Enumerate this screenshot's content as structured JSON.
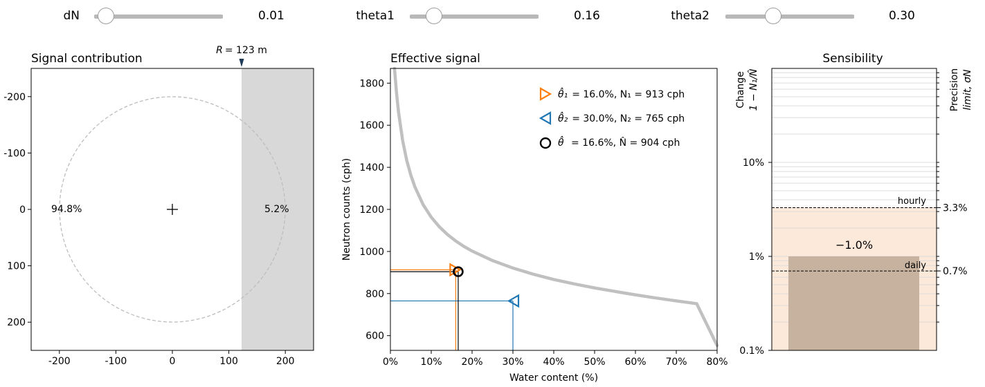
{
  "controls": [
    {
      "label": "dN",
      "value": "0.01",
      "fraction": 0.09
    },
    {
      "label": "theta1",
      "value": "0.16",
      "fraction": 0.19
    },
    {
      "label": "theta2",
      "value": "0.30",
      "fraction": 0.37
    }
  ],
  "panels": {
    "signal": {
      "title": "Signal contribution",
      "radius_label_prefix": "R",
      "radius_label_value": "= 123 m",
      "inside_pct": "94.8%",
      "outside_pct": "5.2%",
      "colors": {
        "shade": "#d8d8d8",
        "circle": "#bdbdbd",
        "marker": "#1f3b57"
      }
    },
    "effective": {
      "title": "Effective signal",
      "legend": [
        {
          "symbol": "θ̂₁",
          "text": "= 16.0%,  N₁ =  913 cph",
          "color": "#ff7f0e"
        },
        {
          "symbol": "θ̂₂",
          "text": "= 30.0%,  N₂ =  765 cph",
          "color": "#1f77b4"
        },
        {
          "symbol": "θ̂",
          "text": " = 16.6%,  N̂  =  904 cph",
          "color": "#000000"
        }
      ]
    },
    "sensibility": {
      "title": "Sensibility",
      "left_label_1": "Change",
      "left_label_2": "1 − N₁/N̂",
      "right_label_1": "Precision",
      "right_label_2": "limit, σN",
      "hourly_label": "hourly",
      "daily_label": "daily",
      "change_label": "−1.0%",
      "colors": {
        "band": "#fde9d9",
        "bar": "#c6b29e"
      }
    }
  },
  "chart_data": [
    {
      "type": "scatter",
      "title": "Signal contribution",
      "xlabel": "",
      "ylabel": "",
      "xlim": [
        -250,
        250
      ],
      "ylim": [
        250,
        -250
      ],
      "xticks": [
        "-200",
        "-100",
        "0",
        "100",
        "200"
      ],
      "yticks": [
        "-200",
        "-100",
        "0",
        "100",
        "200"
      ],
      "circle_radius_m": 200,
      "cut_radius_m": 123,
      "inside_percent": 94.8,
      "outside_percent": 5.2,
      "center": [
        0,
        0
      ]
    },
    {
      "type": "line",
      "title": "Effective signal",
      "xlabel": "Water content (%)",
      "ylabel": "Neutron counts (cph)",
      "xlim": [
        0,
        80
      ],
      "ylim": [
        530,
        1870
      ],
      "xticks": [
        "0%",
        "10%",
        "20%",
        "30%",
        "40%",
        "50%",
        "60%",
        "70%",
        "80%"
      ],
      "yticks": [
        "600",
        "800",
        "1000",
        "1200",
        "1400",
        "1600",
        "1800"
      ],
      "curve_x": [
        1,
        1.5,
        2,
        3,
        4,
        5,
        6,
        8,
        10,
        12,
        14,
        16,
        18,
        20,
        25,
        30,
        35,
        40,
        45,
        50,
        55,
        60,
        65,
        70,
        75,
        80
      ],
      "curve_y": [
        1870,
        1752,
        1661,
        1527,
        1433,
        1363,
        1307,
        1223,
        1163,
        1117,
        1080,
        1050,
        1024,
        1002,
        957,
        921,
        892,
        867,
        846,
        827,
        810,
        794,
        779,
        765,
        752,
        540
      ],
      "points": [
        {
          "name": "theta1",
          "x": 16.0,
          "y": 913,
          "marker": "triangle-right",
          "color": "#ff7f0e"
        },
        {
          "name": "theta2",
          "x": 30.0,
          "y": 765,
          "marker": "triangle-left",
          "color": "#1f77b4"
        },
        {
          "name": "theta_hat",
          "x": 16.6,
          "y": 904,
          "marker": "circle",
          "color": "#000000"
        }
      ]
    },
    {
      "type": "bar",
      "title": "Sensibility",
      "scale": "log",
      "ylim": [
        0.1,
        100
      ],
      "yticks_left": [
        "0.1%",
        "1%",
        "10%"
      ],
      "change_percent": 1.0,
      "change_label": "−1.0%",
      "hourly_limit_percent": 3.3,
      "daily_limit_percent": 0.7,
      "right_ticks": [
        "3.3%",
        "0.7%"
      ]
    }
  ]
}
